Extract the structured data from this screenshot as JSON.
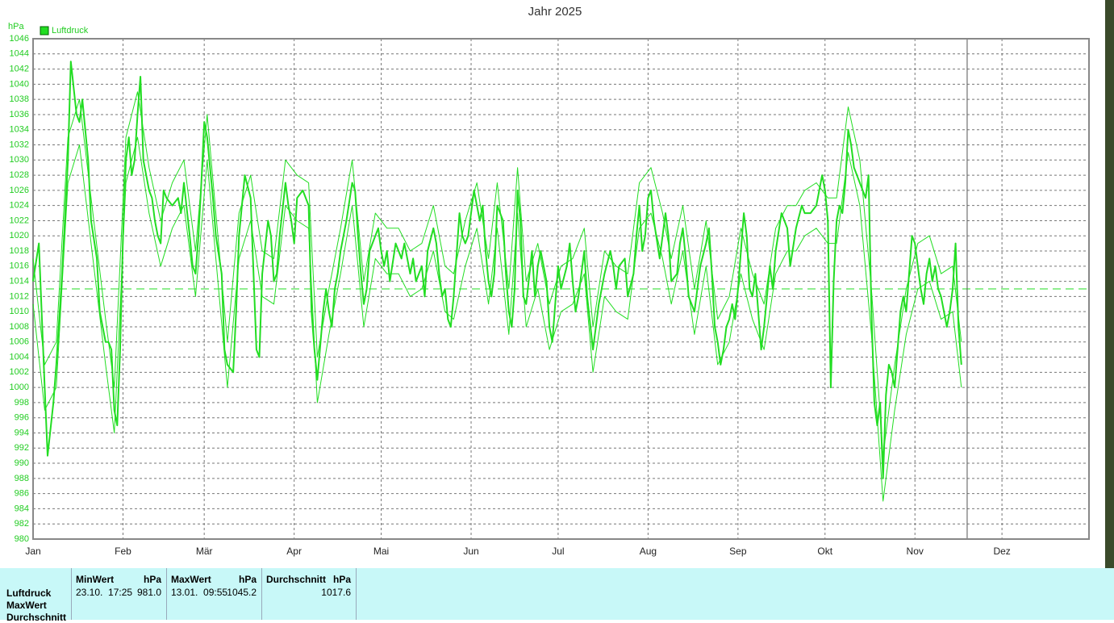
{
  "chart_data": {
    "type": "line",
    "title": "Jahr 2025",
    "y_unit": "hPa",
    "xlim": [
      0,
      364
    ],
    "ylim": [
      980,
      1046
    ],
    "xticks": [
      {
        "value": 0,
        "label": "Jan"
      },
      {
        "value": 31,
        "label": "Feb"
      },
      {
        "value": 59,
        "label": "Mär"
      },
      {
        "value": 90,
        "label": "Apr"
      },
      {
        "value": 120,
        "label": "Mai"
      },
      {
        "value": 151,
        "label": "Jun"
      },
      {
        "value": 181,
        "label": "Jul"
      },
      {
        "value": 212,
        "label": "Aug"
      },
      {
        "value": 243,
        "label": "Sep"
      },
      {
        "value": 273,
        "label": "Okt"
      },
      {
        "value": 304,
        "label": "Nov"
      },
      {
        "value": 334,
        "label": "Dez"
      }
    ],
    "yticks": [
      980,
      982,
      984,
      986,
      988,
      990,
      992,
      994,
      996,
      998,
      1000,
      1002,
      1004,
      1006,
      1008,
      1010,
      1012,
      1014,
      1016,
      1018,
      1020,
      1022,
      1024,
      1026,
      1028,
      1030,
      1032,
      1034,
      1036,
      1038,
      1040,
      1042,
      1044,
      1046
    ],
    "grid": true,
    "reference_line": 1013,
    "current_x": 322,
    "series": [
      {
        "name": "Luftdruck",
        "color": "#22dd22",
        "x": [
          0,
          2,
          4,
          5,
          7,
          8,
          10,
          12,
          13,
          15,
          16,
          17,
          19,
          20,
          22,
          23,
          25,
          26,
          27,
          28,
          29,
          30,
          31,
          32,
          33,
          34,
          35,
          36,
          37,
          38,
          40,
          41,
          42,
          43,
          44,
          45,
          46,
          48,
          50,
          51,
          52,
          54,
          55,
          56,
          57,
          58,
          59,
          60,
          62,
          63,
          65,
          66,
          67,
          69,
          70,
          71,
          73,
          75,
          77,
          78,
          79,
          81,
          82,
          83,
          84,
          85,
          87,
          88,
          89,
          90,
          91,
          93,
          95,
          96,
          97,
          98,
          100,
          101,
          102,
          103,
          104,
          105,
          106,
          108,
          110,
          111,
          112,
          113,
          114,
          115,
          116,
          118,
          119,
          120,
          121,
          122,
          123,
          125,
          126,
          127,
          128,
          130,
          131,
          132,
          134,
          135,
          136,
          138,
          139,
          140,
          141,
          142,
          143,
          144,
          145,
          147,
          148,
          149,
          150,
          152,
          153,
          154,
          155,
          156,
          157,
          158,
          159,
          160,
          162,
          163,
          164,
          165,
          166,
          167,
          168,
          169,
          170,
          172,
          173,
          174,
          175,
          177,
          178,
          179,
          180,
          181,
          182,
          184,
          185,
          186,
          187,
          188,
          190,
          191,
          193,
          195,
          197,
          199,
          200,
          201,
          202,
          204,
          205,
          207,
          208,
          209,
          210,
          211,
          212,
          213,
          214,
          216,
          217,
          218,
          219,
          220,
          222,
          223,
          224,
          225,
          226,
          228,
          229,
          230,
          232,
          233,
          234,
          235,
          236,
          237,
          238,
          239,
          240,
          241,
          242,
          243,
          244,
          245,
          246,
          247,
          248,
          249,
          250,
          251,
          252,
          253,
          254,
          255,
          256,
          258,
          260,
          261,
          263,
          265,
          266,
          268,
          270,
          272,
          273,
          274,
          275,
          276,
          277,
          278,
          279,
          280,
          281,
          282,
          283,
          285,
          287,
          288,
          289,
          290,
          291,
          292,
          293,
          294,
          295,
          296,
          297,
          298,
          299,
          300,
          301,
          302,
          303,
          304,
          305,
          306,
          307,
          308,
          309,
          310,
          311,
          312,
          313,
          314,
          315,
          316,
          317,
          318,
          319,
          320
        ],
        "values": [
          1014,
          1019,
          1000,
          991,
          998,
          1003,
          1015,
          1030,
          1043,
          1036,
          1035,
          1038,
          1030,
          1022,
          1017,
          1010,
          1006,
          1006,
          1005,
          997,
          995,
          1005,
          1020,
          1030,
          1033,
          1028,
          1030,
          1036,
          1041,
          1030,
          1026,
          1025,
          1022,
          1020,
          1019,
          1026,
          1025,
          1024,
          1025,
          1023,
          1027,
          1020,
          1016,
          1015,
          1020,
          1027,
          1035,
          1033,
          1025,
          1020,
          1015,
          1005,
          1003,
          1002,
          1010,
          1020,
          1028,
          1025,
          1005,
          1004,
          1015,
          1022,
          1020,
          1014,
          1015,
          1020,
          1027,
          1024,
          1022,
          1019,
          1025,
          1026,
          1024,
          1010,
          1005,
          1001,
          1010,
          1013,
          1010,
          1008,
          1013,
          1015,
          1018,
          1022,
          1027,
          1026,
          1020,
          1015,
          1011,
          1013,
          1018,
          1020,
          1021,
          1018,
          1016,
          1018,
          1014,
          1019,
          1018,
          1017,
          1019,
          1015,
          1017,
          1014,
          1016,
          1012,
          1018,
          1021,
          1019,
          1015,
          1012,
          1013,
          1009,
          1008,
          1012,
          1023,
          1020,
          1019,
          1020,
          1026,
          1024,
          1022,
          1024,
          1018,
          1014,
          1012,
          1015,
          1024,
          1022,
          1015,
          1010,
          1008,
          1013,
          1026,
          1022,
          1012,
          1011,
          1018,
          1012,
          1016,
          1018,
          1014,
          1008,
          1006,
          1011,
          1016,
          1013,
          1016,
          1019,
          1014,
          1010,
          1012,
          1018,
          1012,
          1005,
          1011,
          1015,
          1018,
          1016,
          1013,
          1016,
          1017,
          1012,
          1015,
          1020,
          1024,
          1018,
          1020,
          1025,
          1026,
          1022,
          1017,
          1020,
          1023,
          1020,
          1014,
          1015,
          1019,
          1021,
          1017,
          1012,
          1010,
          1013,
          1016,
          1019,
          1021,
          1015,
          1008,
          1006,
          1003,
          1005,
          1008,
          1009,
          1011,
          1009,
          1013,
          1018,
          1023,
          1020,
          1013,
          1012,
          1015,
          1010,
          1005,
          1008,
          1012,
          1016,
          1013,
          1018,
          1023,
          1021,
          1016,
          1021,
          1024,
          1023,
          1023,
          1024,
          1028,
          1026,
          1022,
          1000,
          1014,
          1022,
          1024,
          1023,
          1027,
          1034,
          1032,
          1029,
          1027,
          1025,
          1028,
          1010,
          998,
          995,
          998,
          988,
          999,
          1003,
          1002,
          1000,
          1005,
          1010,
          1012,
          1010,
          1015,
          1020,
          1019,
          1016,
          1013,
          1011,
          1015,
          1017,
          1014,
          1016,
          1013,
          1012,
          1010,
          1008,
          1010,
          1013,
          1019,
          1008,
          1003
        ]
      },
      {
        "color": "#22dd22",
        "x": [
          0,
          4,
          8,
          12,
          16,
          20,
          25,
          28,
          32,
          36,
          40,
          44,
          48,
          52,
          56,
          60,
          63,
          67,
          71,
          75,
          79,
          83,
          87,
          91,
          95,
          98,
          102,
          106,
          110,
          114,
          118,
          122,
          126,
          130,
          134,
          138,
          142,
          145,
          149,
          153,
          157,
          160,
          164,
          167,
          170,
          174,
          178,
          182,
          186,
          190,
          193,
          197,
          201,
          205,
          209,
          213,
          217,
          220,
          224,
          228,
          232,
          236,
          240,
          244,
          248,
          252,
          256,
          260,
          263,
          266,
          270,
          274,
          277,
          281,
          285,
          289,
          293,
          297,
          301,
          305,
          309,
          313,
          317,
          320
        ],
        "values": [
          1017,
          1003,
          1006,
          1033,
          1038,
          1025,
          1009,
          1000,
          1033,
          1039,
          1029,
          1022,
          1027,
          1030,
          1018,
          1036,
          1023,
          1006,
          1023,
          1028,
          1018,
          1017,
          1030,
          1028,
          1027,
          1004,
          1013,
          1021,
          1030,
          1014,
          1023,
          1021,
          1021,
          1018,
          1019,
          1024,
          1016,
          1015,
          1022,
          1027,
          1017,
          1027,
          1013,
          1029,
          1014,
          1019,
          1011,
          1016,
          1017,
          1021,
          1008,
          1018,
          1016,
          1015,
          1027,
          1029,
          1023,
          1017,
          1024,
          1013,
          1022,
          1009,
          1012,
          1021,
          1015,
          1011,
          1021,
          1024,
          1024,
          1026,
          1027,
          1025,
          1025,
          1037,
          1030,
          1013,
          991,
          1003,
          1013,
          1019,
          1020,
          1015,
          1016,
          1006
        ]
      },
      {
        "color": "#22dd22",
        "x": [
          0,
          4,
          8,
          12,
          16,
          20,
          25,
          28,
          32,
          36,
          40,
          44,
          48,
          52,
          56,
          60,
          63,
          67,
          71,
          75,
          79,
          83,
          87,
          91,
          95,
          98,
          102,
          106,
          110,
          114,
          118,
          122,
          126,
          130,
          134,
          138,
          142,
          145,
          149,
          153,
          157,
          160,
          164,
          167,
          170,
          174,
          178,
          182,
          186,
          190,
          193,
          197,
          201,
          205,
          209,
          213,
          217,
          220,
          224,
          228,
          232,
          236,
          240,
          244,
          248,
          252,
          256,
          260,
          263,
          266,
          270,
          274,
          277,
          281,
          285,
          289,
          293,
          297,
          301,
          305,
          309,
          313,
          317,
          320
        ],
        "values": [
          1011,
          997,
          1000,
          1027,
          1032,
          1019,
          1003,
          994,
          1027,
          1033,
          1023,
          1016,
          1021,
          1024,
          1012,
          1030,
          1017,
          1000,
          1017,
          1022,
          1012,
          1011,
          1024,
          1022,
          1021,
          998,
          1007,
          1015,
          1024,
          1008,
          1017,
          1015,
          1015,
          1012,
          1013,
          1018,
          1010,
          1009,
          1016,
          1021,
          1011,
          1021,
          1007,
          1023,
          1008,
          1013,
          1005,
          1010,
          1011,
          1015,
          1002,
          1012,
          1010,
          1009,
          1021,
          1023,
          1017,
          1011,
          1018,
          1007,
          1016,
          1003,
          1006,
          1015,
          1009,
          1005,
          1015,
          1018,
          1018,
          1020,
          1021,
          1019,
          1019,
          1031,
          1024,
          1007,
          985,
          997,
          1007,
          1013,
          1014,
          1009,
          1010,
          1000
        ]
      }
    ]
  },
  "table": {
    "headers": [
      [
        "MinWert",
        "hPa"
      ],
      [
        "MaxWert",
        "hPa"
      ],
      [
        "Durchschnitt",
        "hPa"
      ]
    ],
    "row_labels": [
      "Luftdruck",
      "MaxWert",
      "Durchschnitt"
    ],
    "rows": [
      [
        "23.10.  17:25",
        "981.0"
      ],
      [
        "13.01.  09:55",
        "1045.2"
      ],
      [
        "",
        "1017.6"
      ]
    ]
  }
}
